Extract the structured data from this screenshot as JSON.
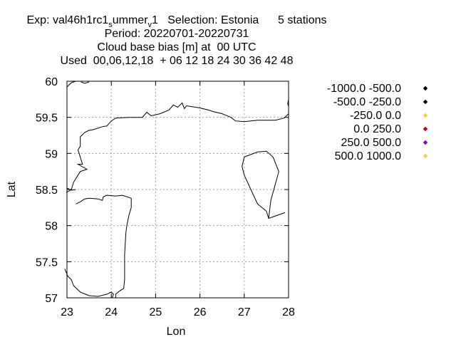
{
  "header": {
    "line1": {
      "pre": "Exp: val46h1rc1",
      "sub1": "s",
      "mid": "ummer",
      "sub2": "v",
      "post": "1   Selection: Estonia      5 stations"
    },
    "line2": "Period: 20220701-20220731",
    "line3": "Cloud base bias [m] at  00 UTC",
    "line4": "Used  00,06,12,18  + 06 12 18 24 30 36 42 48"
  },
  "chart_data": {
    "type": "scatter",
    "xlabel": "Lon",
    "ylabel": "Lat",
    "xlim": [
      23,
      28
    ],
    "ylim": [
      57,
      60
    ],
    "xticks": [
      23,
      24,
      25,
      26,
      27,
      28
    ],
    "yticks": [
      57,
      57.5,
      58,
      58.5,
      59,
      59.5,
      60
    ],
    "xtick_labels": [
      "23",
      "24",
      "25",
      "26",
      "27",
      "28"
    ],
    "ytick_labels": [
      "57",
      "57.5",
      "58",
      "58.5",
      "59",
      "59.5",
      "60"
    ],
    "grid": true,
    "legend_position": "right",
    "series": [
      {
        "name": "-1000.0 -500.0",
        "color": "#000000",
        "points": []
      },
      {
        "name": "-500.0 -250.0",
        "color": "#000000",
        "points": []
      },
      {
        "name": "-250.0 0.0",
        "color": "#f4d03f",
        "points": []
      },
      {
        "name": "0.0 250.0",
        "color": "#cc0000",
        "points": []
      },
      {
        "name": "250.0 500.0",
        "color": "#8b00d4",
        "points": []
      },
      {
        "name": "500.0 1000.0",
        "color": "#f4d03f",
        "points": []
      }
    ],
    "coastlines": [
      [
        [
          23.0,
          59.92
        ],
        [
          23.1,
          59.98
        ],
        [
          23.2,
          60.0
        ]
      ],
      [
        [
          23.32,
          59.99
        ],
        [
          23.4,
          59.97
        ],
        [
          23.5,
          59.99
        ]
      ],
      [
        [
          28.0,
          59.75
        ],
        [
          27.98,
          59.69
        ],
        [
          28.0,
          59.65
        ]
      ],
      [
        [
          28.0,
          59.55
        ],
        [
          27.9,
          59.49
        ],
        [
          27.7,
          59.46
        ],
        [
          27.3,
          59.46
        ],
        [
          27.0,
          59.44
        ],
        [
          26.8,
          59.45
        ],
        [
          26.7,
          59.5
        ],
        [
          26.5,
          59.55
        ],
        [
          26.3,
          59.58
        ],
        [
          26.2,
          59.6
        ],
        [
          26.0,
          59.63
        ],
        [
          25.8,
          59.65
        ],
        [
          25.7,
          59.66
        ],
        [
          25.65,
          59.62
        ],
        [
          25.6,
          59.7
        ],
        [
          25.5,
          59.64
        ],
        [
          25.4,
          59.67
        ],
        [
          25.3,
          59.6
        ],
        [
          25.1,
          59.55
        ],
        [
          24.9,
          59.52
        ],
        [
          24.8,
          59.57
        ],
        [
          24.7,
          59.5
        ],
        [
          24.4,
          59.5
        ],
        [
          24.1,
          59.49
        ],
        [
          24.0,
          59.45
        ],
        [
          23.9,
          59.38
        ],
        [
          23.8,
          59.37
        ],
        [
          23.6,
          59.33
        ],
        [
          23.5,
          59.32
        ],
        [
          23.4,
          59.29
        ],
        [
          23.35,
          59.26
        ],
        [
          23.3,
          59.23
        ],
        [
          23.3,
          59.1
        ],
        [
          23.25,
          59.05
        ],
        [
          23.35,
          58.85
        ],
        [
          23.25,
          58.85
        ],
        [
          23.45,
          58.78
        ],
        [
          23.3,
          58.75
        ],
        [
          23.25,
          58.7
        ],
        [
          23.2,
          58.65
        ],
        [
          23.15,
          58.6
        ],
        [
          23.1,
          58.5
        ],
        [
          23.05,
          58.48
        ],
        [
          22.98,
          58.46
        ]
      ],
      [
        [
          23.0,
          58.52
        ],
        [
          23.1,
          58.49
        ],
        [
          23.2,
          58.5
        ]
      ],
      [
        [
          23.2,
          58.3
        ],
        [
          23.3,
          58.33
        ],
        [
          23.4,
          58.37
        ],
        [
          23.5,
          58.38
        ],
        [
          23.7,
          58.37
        ],
        [
          23.8,
          58.35
        ],
        [
          23.82,
          58.4
        ],
        [
          23.9,
          58.42
        ],
        [
          24.1,
          58.41
        ],
        [
          24.25,
          58.42
        ],
        [
          24.45,
          58.38
        ],
        [
          24.45,
          58.25
        ],
        [
          24.4,
          58.15
        ],
        [
          24.35,
          58.0
        ],
        [
          24.33,
          57.9
        ],
        [
          24.32,
          57.8
        ],
        [
          24.3,
          57.6
        ],
        [
          24.3,
          57.4
        ],
        [
          24.3,
          57.25
        ],
        [
          24.28,
          57.13
        ],
        [
          24.2,
          57.1
        ],
        [
          24.1,
          57.05
        ],
        [
          24.1,
          57.0
        ]
      ],
      [
        [
          22.95,
          57.4
        ],
        [
          23.02,
          57.3
        ],
        [
          23.1,
          57.25
        ],
        [
          23.15,
          57.17
        ],
        [
          23.3,
          57.08
        ],
        [
          23.5,
          57.03
        ],
        [
          23.7,
          57.02
        ],
        [
          23.9,
          57.05
        ],
        [
          24.0,
          57.08
        ],
        [
          24.05,
          57.05
        ],
        [
          24.02,
          57.0
        ]
      ],
      [
        [
          27.92,
          58.18
        ],
        [
          27.55,
          58.1
        ],
        [
          27.5,
          58.2
        ],
        [
          27.3,
          58.3
        ],
        [
          27.15,
          58.5
        ],
        [
          27.0,
          58.7
        ],
        [
          26.95,
          58.82
        ],
        [
          27.0,
          58.95
        ],
        [
          27.3,
          59.02
        ],
        [
          27.5,
          59.03
        ],
        [
          27.65,
          58.95
        ],
        [
          27.78,
          58.75
        ],
        [
          27.6,
          58.35
        ],
        [
          27.55,
          58.1
        ]
      ]
    ]
  }
}
